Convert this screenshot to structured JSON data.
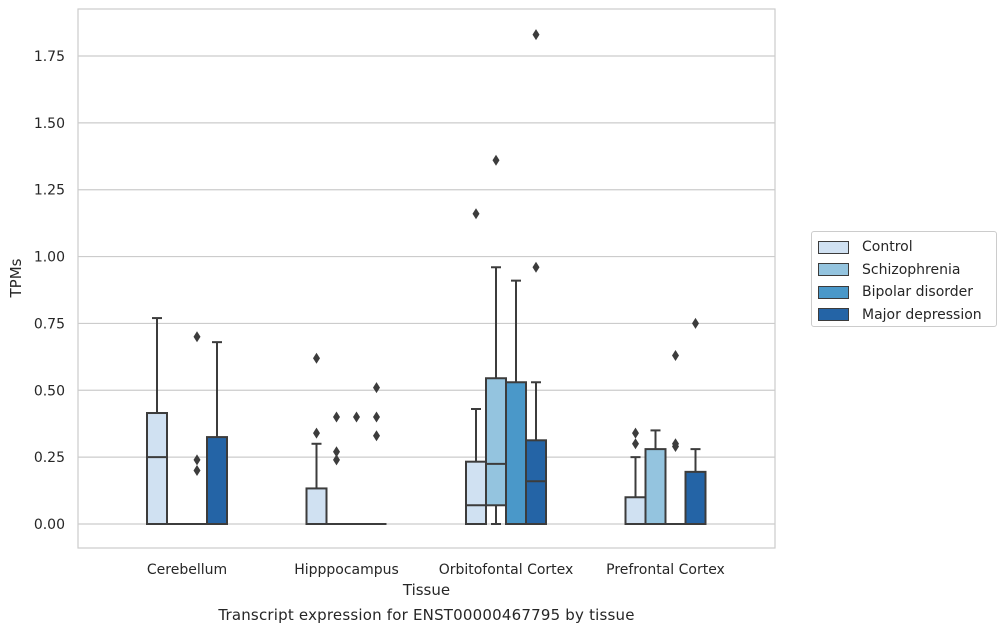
{
  "chart_data": {
    "type": "boxplot",
    "title": "",
    "xlabel": "Tissue",
    "ylabel": "TPMs",
    "caption": "Transcript expression for ENST00000467795 by tissue",
    "ylim": [
      -0.09,
      1.92
    ],
    "yticks": [
      0.0,
      0.25,
      0.5,
      0.75,
      1.0,
      1.25,
      1.5,
      1.75
    ],
    "ytick_labels": [
      "0.00",
      "0.25",
      "0.50",
      "0.75",
      "1.00",
      "1.25",
      "1.50",
      "1.75"
    ],
    "grid": "horizontal",
    "legend_position": "right",
    "categories": [
      "Cerebellum",
      "Hipppocampus",
      "Orbitofontal Cortex",
      "Prefrontal Cortex"
    ],
    "series": [
      {
        "name": "Control",
        "color": "#d0e1f2",
        "boxes": [
          {
            "q1": 0.0,
            "median": 0.25,
            "q3": 0.415,
            "whisker_low": 0.0,
            "whisker_high": 0.77,
            "outliers": []
          },
          {
            "q1": 0.0,
            "median": 0.0,
            "q3": 0.133,
            "whisker_low": 0.0,
            "whisker_high": 0.3,
            "outliers": [
              0.34,
              0.62
            ]
          },
          {
            "q1": 0.0,
            "median": 0.07,
            "q3": 0.233,
            "whisker_low": 0.0,
            "whisker_high": 0.43,
            "outliers": [
              1.16
            ]
          },
          {
            "q1": 0.0,
            "median": 0.0,
            "q3": 0.1,
            "whisker_low": 0.0,
            "whisker_high": 0.25,
            "outliers": [
              0.3,
              0.34
            ]
          }
        ]
      },
      {
        "name": "Schizophrenia",
        "color": "#94c4df",
        "boxes": [
          {
            "q1": 0.0,
            "median": 0.0,
            "q3": 0.0,
            "whisker_low": 0.0,
            "whisker_high": 0.0,
            "outliers": []
          },
          {
            "q1": 0.0,
            "median": 0.0,
            "q3": 0.0,
            "whisker_low": 0.0,
            "whisker_high": 0.0,
            "outliers": [
              0.24,
              0.27,
              0.4
            ]
          },
          {
            "q1": 0.07,
            "median": 0.225,
            "q3": 0.545,
            "whisker_low": 0.0,
            "whisker_high": 0.96,
            "outliers": [
              1.36
            ]
          },
          {
            "q1": 0.0,
            "median": 0.0,
            "q3": 0.28,
            "whisker_low": 0.0,
            "whisker_high": 0.35,
            "outliers": []
          }
        ]
      },
      {
        "name": "Bipolar disorder",
        "color": "#4a98c9",
        "boxes": [
          {
            "q1": 0.0,
            "median": 0.0,
            "q3": 0.0,
            "whisker_low": 0.0,
            "whisker_high": 0.0,
            "outliers": [
              0.2,
              0.24,
              0.7
            ]
          },
          {
            "q1": 0.0,
            "median": 0.0,
            "q3": 0.0,
            "whisker_low": 0.0,
            "whisker_high": 0.0,
            "outliers": [
              0.4
            ]
          },
          {
            "q1": 0.0,
            "median": 0.0,
            "q3": 0.53,
            "whisker_low": 0.0,
            "whisker_high": 0.91,
            "outliers": []
          },
          {
            "q1": 0.0,
            "median": 0.0,
            "q3": 0.0,
            "whisker_low": 0.0,
            "whisker_high": 0.0,
            "outliers": [
              0.29,
              0.3,
              0.63
            ]
          }
        ]
      },
      {
        "name": "Major depression",
        "color": "#2464a6",
        "boxes": [
          {
            "q1": 0.0,
            "median": 0.0,
            "q3": 0.325,
            "whisker_low": 0.0,
            "whisker_high": 0.68,
            "outliers": []
          },
          {
            "q1": 0.0,
            "median": 0.0,
            "q3": 0.0,
            "whisker_low": 0.0,
            "whisker_high": 0.0,
            "outliers": [
              0.33,
              0.4,
              0.51
            ]
          },
          {
            "q1": 0.0,
            "median": 0.16,
            "q3": 0.313,
            "whisker_low": 0.0,
            "whisker_high": 0.53,
            "outliers": [
              0.96,
              1.83
            ]
          },
          {
            "q1": 0.0,
            "median": 0.0,
            "q3": 0.195,
            "whisker_low": 0.0,
            "whisker_high": 0.28,
            "outliers": [
              0.75
            ]
          }
        ]
      }
    ]
  },
  "colors": {
    "grid": "#cccccc",
    "frame": "#cccccc",
    "box_edge": "#3c3c3c",
    "outlier": "#3c3c3c"
  }
}
